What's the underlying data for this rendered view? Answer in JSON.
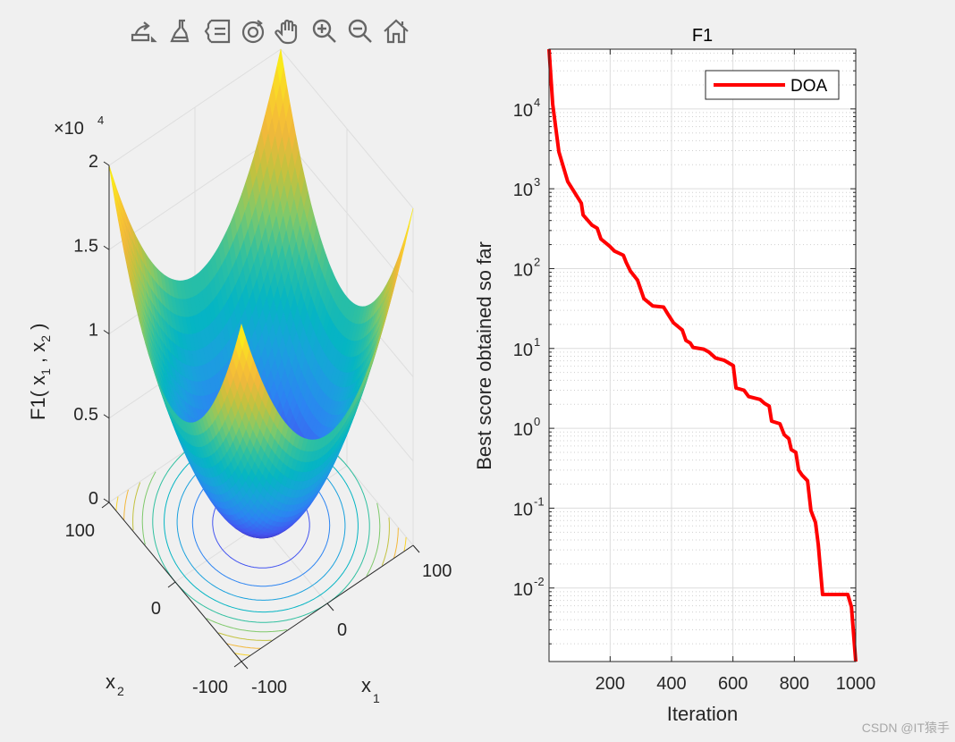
{
  "toolbar": {
    "icons": [
      "export-icon",
      "brush-icon",
      "data-tips-icon",
      "rotate-3d-icon",
      "pan-hand-icon",
      "zoom-in-icon",
      "zoom-out-icon",
      "home-restore-view-icon"
    ]
  },
  "watermark": "CSDN @IT猿手",
  "colors": {
    "line": "#ff0000",
    "axis": "#262626",
    "grid": "#dcdcdc",
    "background": "#f0f0f0"
  },
  "chart_data": [
    {
      "type": "surface",
      "function": "F1",
      "zlabel": "F1( x₁ , x₂ )",
      "zlabel_main": "F1( x",
      "xlabel": "x",
      "xlabel_sub": "1",
      "ylabel": "x",
      "ylabel_sub": "2",
      "zlabel_parts": [
        "F1( x",
        "1",
        " , x",
        "2",
        " )"
      ],
      "x_range": [
        -100,
        100
      ],
      "y_range": [
        -100,
        100
      ],
      "z_range": [
        0,
        20000
      ],
      "z_exponent": "×10",
      "z_exponent_power": "4",
      "z_ticks": [
        "0",
        "0.5",
        "1",
        "1.5",
        "2"
      ],
      "x_ticks": [
        "-100",
        "0",
        "100"
      ],
      "y_ticks": [
        "-100",
        "0",
        "100"
      ],
      "contour_levels": [
        2000,
        4000,
        6000,
        8000,
        10000,
        12000,
        14000,
        16000,
        18000,
        20000
      ],
      "colormap": "parula",
      "colormap_stops": [
        "#3e26a8",
        "#4455f0",
        "#2c84f2",
        "#1aa1dd",
        "#05b5c3",
        "#30c0a0",
        "#7fc96b",
        "#c3c23f",
        "#f3b83b",
        "#f9d32a",
        "#f9fb0e"
      ]
    },
    {
      "type": "line",
      "title": "F1",
      "xlabel": "Iteration",
      "ylabel": "Best score obtained so far",
      "xlim": [
        1,
        1000
      ],
      "ylim": [
        0.0012,
        56000
      ],
      "yscale": "log",
      "grid": true,
      "minor_grid": true,
      "x_ticks": [
        "200",
        "400",
        "600",
        "800",
        "1000"
      ],
      "y_ticks": [
        {
          "base": "10",
          "exp": "4"
        },
        {
          "base": "10",
          "exp": "3"
        },
        {
          "base": "10",
          "exp": "2"
        },
        {
          "base": "10",
          "exp": "1"
        },
        {
          "base": "10",
          "exp": "0"
        },
        {
          "base": "10",
          "exp": "-1"
        },
        {
          "base": "10",
          "exp": "-2"
        }
      ],
      "legend": {
        "position": "top-right",
        "entries": [
          "DOA"
        ]
      },
      "series": [
        {
          "name": "DOA",
          "color": "#ff0000",
          "x": [
            1,
            13,
            33,
            62,
            106,
            112,
            141,
            158,
            170,
            199,
            214,
            243,
            252,
            266,
            289,
            310,
            339,
            374,
            388,
            406,
            435,
            447,
            461,
            470,
            505,
            522,
            543,
            572,
            601,
            610,
            636,
            651,
            688,
            703,
            718,
            726,
            753,
            767,
            782,
            790,
            805,
            814,
            825,
            843,
            854,
            869,
            878,
            892,
            974,
            986,
            1000
          ],
          "y": [
            56000,
            11400,
            2900,
            1230,
            660,
            470,
            350,
            320,
            235,
            190,
            166,
            147,
            120,
            93,
            72,
            42,
            34,
            33,
            27,
            21,
            17,
            12.6,
            11.7,
            10.3,
            9.8,
            9.0,
            7.6,
            7.1,
            6.1,
            3.2,
            3.0,
            2.5,
            2.3,
            2.05,
            1.9,
            1.23,
            1.14,
            0.83,
            0.74,
            0.54,
            0.5,
            0.3,
            0.26,
            0.22,
            0.093,
            0.066,
            0.035,
            0.0083,
            0.0083,
            0.0058,
            0.0012
          ]
        }
      ]
    }
  ]
}
